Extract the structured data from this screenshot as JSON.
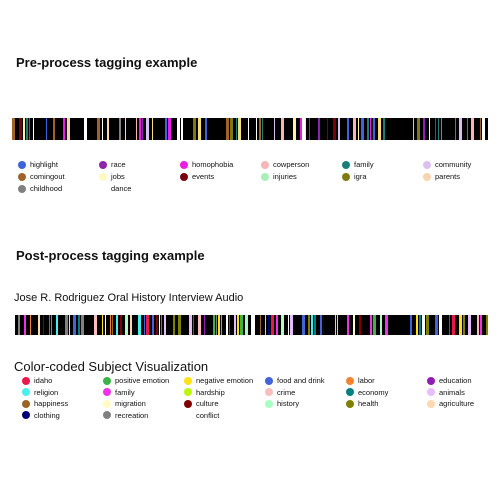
{
  "pre": {
    "title": "Pre-process tagging example",
    "legend": [
      {
        "label": "highlight",
        "color": "#3d63dd"
      },
      {
        "label": "race",
        "color": "#8e24aa"
      },
      {
        "label": "homophobia",
        "color": "#e91ee0"
      },
      {
        "label": "cowperson",
        "color": "#f4b6b6"
      },
      {
        "label": "family",
        "color": "#1a7f7a"
      },
      {
        "label": "community",
        "color": "#d9c2f0"
      },
      {
        "label": "comingout",
        "color": "#a0642a"
      },
      {
        "label": "jobs",
        "color": "#fff8c0"
      },
      {
        "label": "events",
        "color": "#7a0010"
      },
      {
        "label": "injuries",
        "color": "#a8f0b8"
      },
      {
        "label": "igra",
        "color": "#7d7a12"
      },
      {
        "label": "parents",
        "color": "#f8d4b0"
      },
      {
        "label": "childhood",
        "color": "#808080"
      },
      {
        "label": "dance",
        "color": ""
      }
    ]
  },
  "post": {
    "title": "Post-process tagging example",
    "subtitle": "Jose R. Rodriguez Oral History Interview Audio",
    "viz_title": "Color-coded Subject Visualization",
    "legend": [
      {
        "label": "idaho",
        "color": "#e6194b"
      },
      {
        "label": "positive emotion",
        "color": "#3cb44b"
      },
      {
        "label": "negative emotion",
        "color": "#ffe119"
      },
      {
        "label": "food and drink",
        "color": "#4363d8"
      },
      {
        "label": "labor",
        "color": "#f58231"
      },
      {
        "label": "education",
        "color": "#911eb4"
      },
      {
        "label": "religion",
        "color": "#46f0f0"
      },
      {
        "label": "family",
        "color": "#f032e6"
      },
      {
        "label": "hardship",
        "color": "#bcf60c"
      },
      {
        "label": "crime",
        "color": "#fabebe"
      },
      {
        "label": "economy",
        "color": "#008080"
      },
      {
        "label": "animals",
        "color": "#e6beff"
      },
      {
        "label": "happiness",
        "color": "#9a6324"
      },
      {
        "label": "migration",
        "color": "#fffac8"
      },
      {
        "label": "culture",
        "color": "#800000"
      },
      {
        "label": "history",
        "color": "#aaffc3"
      },
      {
        "label": "health",
        "color": "#808000"
      },
      {
        "label": "agriculture",
        "color": "#ffd8b1"
      },
      {
        "label": "clothing",
        "color": "#000075"
      },
      {
        "label": "recreation",
        "color": "#808080"
      },
      {
        "label": "conflict",
        "color": ""
      }
    ]
  }
}
